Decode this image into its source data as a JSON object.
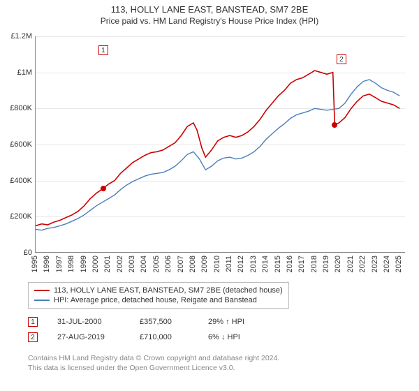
{
  "title": "113, HOLLY LANE EAST, BANSTEAD, SM7 2BE",
  "subtitle": "Price paid vs. HM Land Registry's House Price Index (HPI)",
  "chart": {
    "type": "line",
    "background_color": "#ffffff",
    "grid_color": "#e8e8e8",
    "axis_color": "#888888",
    "x_years": [
      1995,
      1996,
      1997,
      1998,
      1999,
      2000,
      2001,
      2002,
      2003,
      2004,
      2005,
      2006,
      2007,
      2008,
      2009,
      2010,
      2011,
      2012,
      2013,
      2014,
      2015,
      2016,
      2017,
      2018,
      2019,
      2020,
      2021,
      2022,
      2023,
      2024,
      2025
    ],
    "xlim": [
      1995,
      2025.5
    ],
    "ylim": [
      0,
      1200000
    ],
    "ytick_step": 200000,
    "yticks": [
      "£0",
      "£200K",
      "£400K",
      "£600K",
      "£800K",
      "£1M",
      "£1.2M"
    ],
    "series": [
      {
        "name": "price_paid",
        "label": "113, HOLLY LANE EAST, BANSTEAD, SM7 2BE (detached house)",
        "color": "#cc0000",
        "line_width": 1.6,
        "points": [
          [
            1995.0,
            150000
          ],
          [
            1995.5,
            160000
          ],
          [
            1996.0,
            155000
          ],
          [
            1996.5,
            170000
          ],
          [
            1997.0,
            180000
          ],
          [
            1997.5,
            195000
          ],
          [
            1998.0,
            210000
          ],
          [
            1998.5,
            230000
          ],
          [
            1999.0,
            260000
          ],
          [
            1999.5,
            300000
          ],
          [
            2000.0,
            330000
          ],
          [
            2000.58,
            357500
          ],
          [
            2001.0,
            380000
          ],
          [
            2001.5,
            400000
          ],
          [
            2002.0,
            440000
          ],
          [
            2002.5,
            470000
          ],
          [
            2003.0,
            500000
          ],
          [
            2003.5,
            520000
          ],
          [
            2004.0,
            540000
          ],
          [
            2004.5,
            555000
          ],
          [
            2005.0,
            560000
          ],
          [
            2005.5,
            570000
          ],
          [
            2006.0,
            590000
          ],
          [
            2006.5,
            610000
          ],
          [
            2007.0,
            650000
          ],
          [
            2007.5,
            700000
          ],
          [
            2008.0,
            720000
          ],
          [
            2008.3,
            680000
          ],
          [
            2008.7,
            580000
          ],
          [
            2009.0,
            530000
          ],
          [
            2009.5,
            570000
          ],
          [
            2010.0,
            620000
          ],
          [
            2010.5,
            640000
          ],
          [
            2011.0,
            650000
          ],
          [
            2011.5,
            640000
          ],
          [
            2012.0,
            650000
          ],
          [
            2012.5,
            670000
          ],
          [
            2013.0,
            700000
          ],
          [
            2013.5,
            740000
          ],
          [
            2014.0,
            790000
          ],
          [
            2014.5,
            830000
          ],
          [
            2015.0,
            870000
          ],
          [
            2015.5,
            900000
          ],
          [
            2016.0,
            940000
          ],
          [
            2016.5,
            960000
          ],
          [
            2017.0,
            970000
          ],
          [
            2017.5,
            990000
          ],
          [
            2018.0,
            1010000
          ],
          [
            2018.5,
            1000000
          ],
          [
            2019.0,
            990000
          ],
          [
            2019.5,
            1000000
          ],
          [
            2019.65,
            710000
          ],
          [
            2020.0,
            720000
          ],
          [
            2020.5,
            750000
          ],
          [
            2021.0,
            800000
          ],
          [
            2021.5,
            840000
          ],
          [
            2022.0,
            870000
          ],
          [
            2022.5,
            880000
          ],
          [
            2023.0,
            860000
          ],
          [
            2023.5,
            840000
          ],
          [
            2024.0,
            830000
          ],
          [
            2024.5,
            820000
          ],
          [
            2025.0,
            800000
          ]
        ]
      },
      {
        "name": "hpi",
        "label": "HPI: Average price, detached house, Reigate and Banstead",
        "color": "#4a7ebb",
        "line_width": 1.4,
        "points": [
          [
            1995.0,
            130000
          ],
          [
            1995.5,
            125000
          ],
          [
            1996.0,
            135000
          ],
          [
            1996.5,
            140000
          ],
          [
            1997.0,
            150000
          ],
          [
            1997.5,
            160000
          ],
          [
            1998.0,
            175000
          ],
          [
            1998.5,
            190000
          ],
          [
            1999.0,
            210000
          ],
          [
            1999.5,
            235000
          ],
          [
            2000.0,
            260000
          ],
          [
            2000.5,
            280000
          ],
          [
            2001.0,
            300000
          ],
          [
            2001.5,
            320000
          ],
          [
            2002.0,
            350000
          ],
          [
            2002.5,
            375000
          ],
          [
            2003.0,
            395000
          ],
          [
            2003.5,
            410000
          ],
          [
            2004.0,
            425000
          ],
          [
            2004.5,
            435000
          ],
          [
            2005.0,
            440000
          ],
          [
            2005.5,
            445000
          ],
          [
            2006.0,
            460000
          ],
          [
            2006.5,
            480000
          ],
          [
            2007.0,
            510000
          ],
          [
            2007.5,
            545000
          ],
          [
            2008.0,
            560000
          ],
          [
            2008.5,
            520000
          ],
          [
            2009.0,
            460000
          ],
          [
            2009.5,
            480000
          ],
          [
            2010.0,
            510000
          ],
          [
            2010.5,
            525000
          ],
          [
            2011.0,
            530000
          ],
          [
            2011.5,
            520000
          ],
          [
            2012.0,
            525000
          ],
          [
            2012.5,
            540000
          ],
          [
            2013.0,
            560000
          ],
          [
            2013.5,
            590000
          ],
          [
            2014.0,
            630000
          ],
          [
            2014.5,
            660000
          ],
          [
            2015.0,
            690000
          ],
          [
            2015.5,
            715000
          ],
          [
            2016.0,
            745000
          ],
          [
            2016.5,
            765000
          ],
          [
            2017.0,
            775000
          ],
          [
            2017.5,
            785000
          ],
          [
            2018.0,
            800000
          ],
          [
            2018.5,
            795000
          ],
          [
            2019.0,
            790000
          ],
          [
            2019.5,
            795000
          ],
          [
            2020.0,
            800000
          ],
          [
            2020.5,
            830000
          ],
          [
            2021.0,
            880000
          ],
          [
            2021.5,
            920000
          ],
          [
            2022.0,
            950000
          ],
          [
            2022.5,
            960000
          ],
          [
            2023.0,
            940000
          ],
          [
            2023.5,
            915000
          ],
          [
            2024.0,
            900000
          ],
          [
            2024.5,
            890000
          ],
          [
            2025.0,
            870000
          ]
        ]
      }
    ],
    "sale_markers": [
      {
        "n": "1",
        "x": 2000.58,
        "y": 357500,
        "box_y": 1150000
      },
      {
        "n": "2",
        "x": 2019.65,
        "y": 710000,
        "box_y": 1100000,
        "box_x": 2020.2
      }
    ]
  },
  "legend": {
    "items": [
      {
        "color": "#cc0000",
        "label": "113, HOLLY LANE EAST, BANSTEAD, SM7 2BE (detached house)"
      },
      {
        "color": "#4a7ebb",
        "label": "HPI: Average price, detached house, Reigate and Banstead"
      }
    ]
  },
  "sales": [
    {
      "n": "1",
      "date": "31-JUL-2000",
      "price": "£357,500",
      "pct": "29% ↑ HPI"
    },
    {
      "n": "2",
      "date": "27-AUG-2019",
      "price": "£710,000",
      "pct": "6% ↓ HPI"
    }
  ],
  "footer": {
    "line1": "Contains HM Land Registry data © Crown copyright and database right 2024.",
    "line2": "This data is licensed under the Open Government Licence v3.0."
  }
}
